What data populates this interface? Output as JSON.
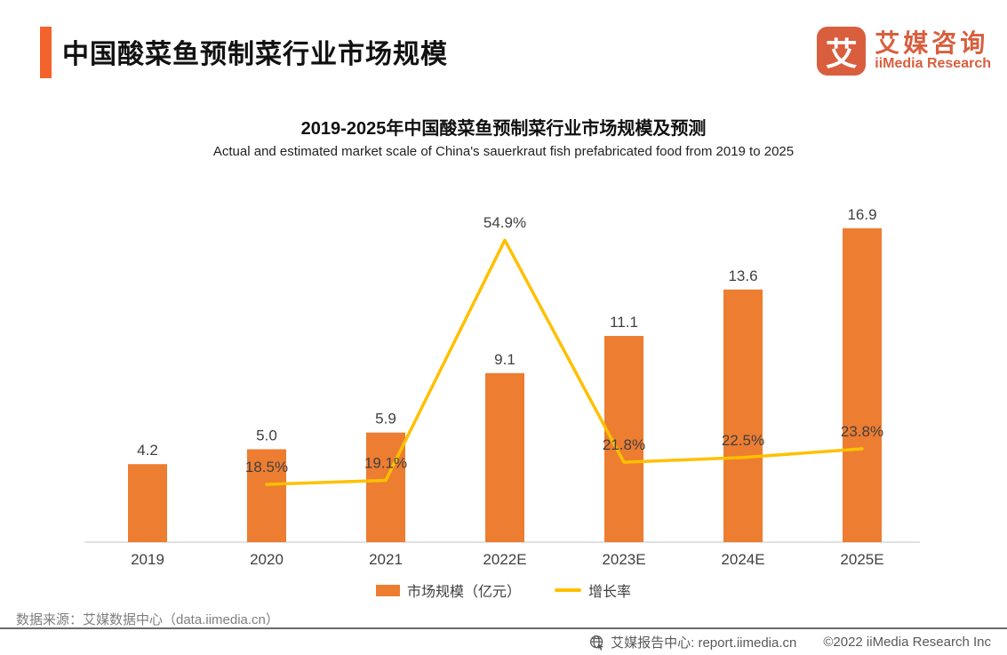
{
  "header": {
    "title": "中国酸菜鱼预制菜行业市场规模",
    "logo": {
      "icon_char": "艾",
      "name_cn": "艾媒咨询",
      "name_en": "iiMedia Research"
    }
  },
  "chart": {
    "title": "2019-2025年中国酸菜鱼预制菜行业市场规模及预测",
    "subtitle": "Actual and estimated market scale of China's sauerkraut fish prefabricated food from 2019 to 2025",
    "legend": [
      {
        "label": "市场规模（亿元）",
        "type": "bar"
      },
      {
        "label": "增长率",
        "type": "line"
      }
    ]
  },
  "chart_data": {
    "type": "bar+line",
    "categories": [
      "2019",
      "2020",
      "2021",
      "2022E",
      "2023E",
      "2024E",
      "2025E"
    ],
    "series": [
      {
        "name": "市场规模（亿元）",
        "type": "bar",
        "color": "#ED7D31",
        "values": [
          4.2,
          5.0,
          5.9,
          9.1,
          11.1,
          13.6,
          16.9
        ]
      },
      {
        "name": "增长率",
        "type": "line",
        "color": "#FFC000",
        "unit": "%",
        "values": [
          null,
          18.5,
          19.1,
          54.9,
          21.8,
          22.5,
          23.8
        ]
      }
    ],
    "title": "2019-2025年中国酸菜鱼预制菜行业市场规模及预测",
    "xlabel": "",
    "ylabel": "",
    "grid": false,
    "legend_position": "bottom"
  },
  "colors": {
    "accent": "#F4632C",
    "brand": "#D95E3E",
    "bar": "#ED7D31",
    "line": "#FFC000",
    "label_text": "#404040",
    "axis_line": "#d9d9d9"
  },
  "source": "数据来源：艾媒数据中心（data.iimedia.cn）",
  "footer": {
    "report_center": "艾媒报告中心:  report.iimedia.cn",
    "copyright": "©2022 iiMedia Research Inc"
  }
}
